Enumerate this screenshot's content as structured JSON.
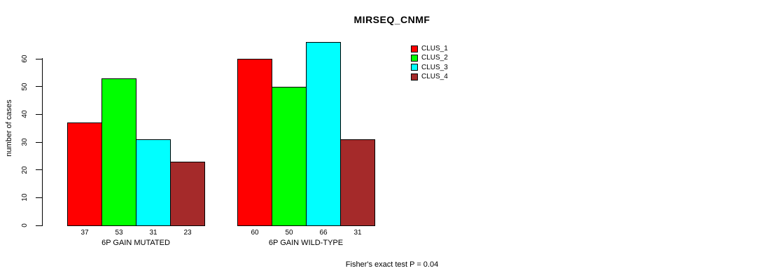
{
  "title": "MIRSEQ_CNMF",
  "ylabel": "number of cases",
  "footer": "Fisher's exact test P = 0.04",
  "chart_data": {
    "type": "bar",
    "title": "MIRSEQ_CNMF",
    "xlabel": "",
    "ylabel": "number of cases",
    "ylim": [
      0,
      60
    ],
    "yticks": [
      0,
      10,
      20,
      30,
      40,
      50,
      60
    ],
    "grid": false,
    "legend_position": "top-right",
    "bar_value_labels": true,
    "categories": [
      "6P GAIN MUTATED",
      "6P GAIN WILD-TYPE"
    ],
    "series": [
      {
        "name": "CLUS_1",
        "color": "#FF0000",
        "values": [
          37,
          60
        ]
      },
      {
        "name": "CLUS_2",
        "color": "#00FF00",
        "values": [
          53,
          50
        ]
      },
      {
        "name": "CLUS_3",
        "color": "#00FFFF",
        "values": [
          31,
          66
        ]
      },
      {
        "name": "CLUS_4",
        "color": "#A52A2A",
        "values": [
          23,
          31
        ]
      }
    ],
    "annotation": "Fisher's exact test P = 0.04"
  }
}
